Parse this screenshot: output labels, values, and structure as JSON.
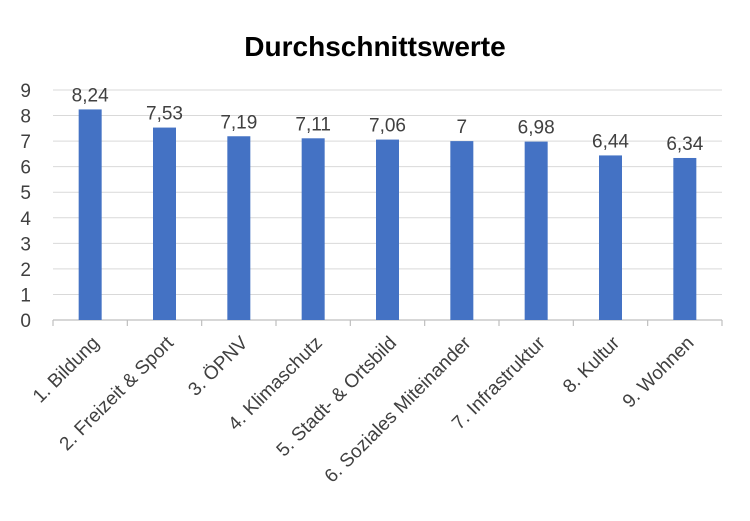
{
  "chart_data": {
    "type": "bar",
    "title": "Durchschnittswerte",
    "categories": [
      "1. Bildung",
      "2. Freizeit & Sport",
      "3. ÖPNV",
      "4. Klimaschutz",
      "5. Stadt- & Ortsbild",
      "6. Soziales Miteinander",
      "7. Infrastruktur",
      "8. Kultur",
      "9. Wohnen"
    ],
    "values": [
      8.24,
      7.53,
      7.19,
      7.11,
      7.06,
      7,
      6.98,
      6.44,
      6.34
    ],
    "data_labels": [
      "8,24",
      "7,53",
      "7,19",
      "7,11",
      "7,06",
      "7",
      "6,98",
      "6,44",
      "6,34"
    ],
    "y_ticks": [
      0,
      1,
      2,
      3,
      4,
      5,
      6,
      7,
      8,
      9
    ],
    "ylim": [
      0,
      9
    ],
    "xlabel": "",
    "ylabel": "",
    "grid": true,
    "legend": "none",
    "colors": {
      "bar": "#4472c4",
      "grid": "#d9d9d9",
      "text": "#404040"
    }
  }
}
